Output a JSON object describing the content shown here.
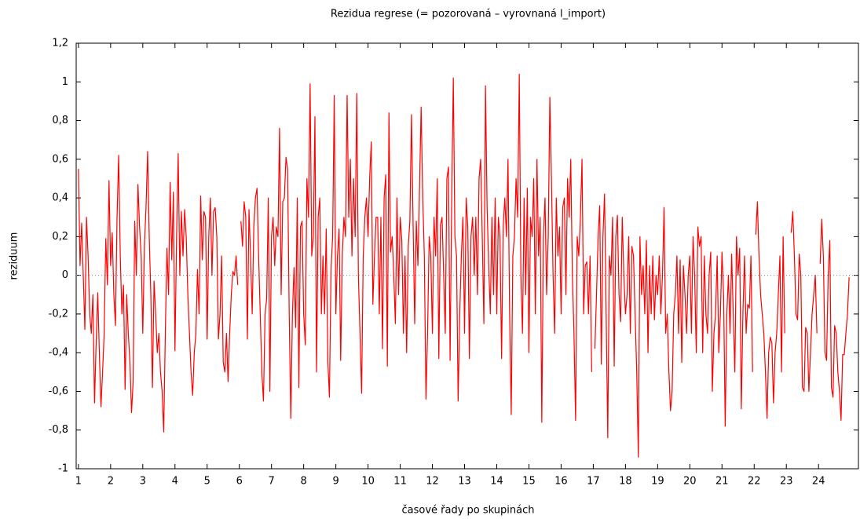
{
  "chart_data": {
    "type": "line",
    "title": "Rezidua regrese (= pozorovaná – vyrovnaná l_import)",
    "x_label": "časové řady po skupinách",
    "y_label": "reziduum",
    "xlim": [
      0.93,
      25.24
    ],
    "ylim": [
      -1,
      1.2
    ],
    "xticks": [
      1,
      2,
      3,
      4,
      5,
      6,
      7,
      8,
      9,
      10,
      11,
      12,
      13,
      14,
      15,
      16,
      17,
      18,
      19,
      20,
      21,
      22,
      23,
      24
    ],
    "yticks": [
      -1,
      {
        "value": -0.8,
        "label": "-0,8"
      },
      {
        "value": -0.6,
        "label": "-0,6"
      },
      {
        "value": -0.4,
        "label": "-0,4"
      },
      {
        "value": -0.2,
        "label": "-0,2"
      },
      0,
      {
        "value": 0.2,
        "label": "0,2"
      },
      {
        "value": 0.4,
        "label": "0,4"
      },
      {
        "value": 0.6,
        "label": "0,6"
      },
      {
        "value": 0.8,
        "label": "0,8"
      },
      1,
      {
        "value": 1.2,
        "label": "1,2"
      }
    ],
    "zero_line": true,
    "x": [
      1,
      1.05,
      1.1,
      1.15,
      1.2,
      1.25,
      1.3,
      1.35,
      1.4,
      1.45,
      1.5,
      1.55,
      1.6,
      1.65,
      1.7,
      1.75,
      1.8,
      1.85,
      1.9,
      1.95,
      2,
      2.05,
      2.1,
      2.15,
      2.2,
      2.25,
      2.3,
      2.35,
      2.4,
      2.45,
      2.5,
      2.55,
      2.6,
      2.65,
      2.7,
      2.75,
      2.8,
      2.85,
      2.9,
      2.95,
      3,
      3.05,
      3.1,
      3.15,
      3.2,
      3.25,
      3.3,
      3.35,
      3.4,
      3.45,
      3.5,
      3.55,
      3.6,
      3.65,
      3.7,
      3.75,
      3.8,
      3.85,
      3.9,
      3.95,
      4,
      4.05,
      4.1,
      4.15,
      4.2,
      4.25,
      4.3,
      4.35,
      4.4,
      4.45,
      4.5,
      4.55,
      4.6,
      4.65,
      4.7,
      4.75,
      4.8,
      4.85,
      4.9,
      4.95,
      5,
      5.05,
      5.1,
      5.15,
      5.2,
      5.25,
      5.3,
      5.35,
      5.4,
      5.45,
      5.5,
      5.55,
      5.6,
      5.65,
      5.7,
      5.75,
      5.8,
      5.85,
      5.9,
      5.95,
      6,
      6.05,
      6.1,
      6.15,
      6.2,
      6.25,
      6.3,
      6.35,
      6.4,
      6.45,
      6.5,
      6.55,
      6.6,
      6.65,
      6.7,
      6.75,
      6.8,
      6.85,
      6.9,
      6.95,
      7,
      7.05,
      7.1,
      7.15,
      7.2,
      7.25,
      7.3,
      7.35,
      7.4,
      7.45,
      7.5,
      7.55,
      7.6,
      7.65,
      7.7,
      7.75,
      7.8,
      7.85,
      7.9,
      7.95,
      8,
      8.05,
      8.1,
      8.15,
      8.2,
      8.25,
      8.3,
      8.35,
      8.4,
      8.45,
      8.5,
      8.55,
      8.6,
      8.65,
      8.7,
      8.75,
      8.8,
      8.85,
      8.9,
      8.95,
      9,
      9.05,
      9.1,
      9.15,
      9.2,
      9.25,
      9.3,
      9.35,
      9.4,
      9.45,
      9.5,
      9.55,
      9.6,
      9.65,
      9.7,
      9.75,
      9.8,
      9.85,
      9.9,
      9.95,
      10,
      10.05,
      10.1,
      10.15,
      10.2,
      10.25,
      10.3,
      10.35,
      10.4,
      10.45,
      10.5,
      10.55,
      10.6,
      10.65,
      10.7,
      10.75,
      10.8,
      10.85,
      10.9,
      10.95,
      11,
      11.05,
      11.1,
      11.15,
      11.2,
      11.25,
      11.3,
      11.35,
      11.4,
      11.45,
      11.5,
      11.55,
      11.6,
      11.65,
      11.7,
      11.75,
      11.8,
      11.85,
      11.9,
      11.95,
      12,
      12.05,
      12.1,
      12.15,
      12.2,
      12.25,
      12.3,
      12.35,
      12.4,
      12.45,
      12.5,
      12.55,
      12.6,
      12.65,
      12.7,
      12.75,
      12.8,
      12.85,
      12.9,
      12.95,
      13,
      13.05,
      13.1,
      13.15,
      13.2,
      13.25,
      13.3,
      13.35,
      13.4,
      13.45,
      13.5,
      13.55,
      13.6,
      13.65,
      13.7,
      13.75,
      13.8,
      13.85,
      13.9,
      13.95,
      14,
      14.05,
      14.1,
      14.15,
      14.2,
      14.25,
      14.3,
      14.35,
      14.4,
      14.45,
      14.5,
      14.55,
      14.6,
      14.65,
      14.7,
      14.75,
      14.8,
      14.85,
      14.9,
      14.95,
      15,
      15.05,
      15.1,
      15.15,
      15.2,
      15.25,
      15.3,
      15.35,
      15.4,
      15.45,
      15.5,
      15.55,
      15.6,
      15.65,
      15.7,
      15.75,
      15.8,
      15.85,
      15.9,
      15.95,
      16,
      16.05,
      16.1,
      16.15,
      16.2,
      16.25,
      16.3,
      16.35,
      16.4,
      16.45,
      16.5,
      16.55,
      16.6,
      16.65,
      16.7,
      16.75,
      16.8,
      16.85,
      16.9,
      16.95,
      17,
      17.05,
      17.1,
      17.15,
      17.2,
      17.25,
      17.3,
      17.35,
      17.4,
      17.45,
      17.5,
      17.55,
      17.6,
      17.65,
      17.7,
      17.75,
      17.8,
      17.85,
      17.9,
      17.95,
      18,
      18.05,
      18.1,
      18.15,
      18.2,
      18.25,
      18.3,
      18.35,
      18.4,
      18.45,
      18.5,
      18.55,
      18.6,
      18.65,
      18.7,
      18.75,
      18.8,
      18.85,
      18.9,
      18.95,
      19,
      19.05,
      19.1,
      19.15,
      19.2,
      19.25,
      19.3,
      19.35,
      19.4,
      19.45,
      19.5,
      19.55,
      19.6,
      19.65,
      19.7,
      19.75,
      19.8,
      19.85,
      19.9,
      19.95,
      20,
      20.05,
      20.1,
      20.15,
      20.2,
      20.25,
      20.3,
      20.35,
      20.4,
      20.45,
      20.5,
      20.55,
      20.6,
      20.65,
      20.7,
      20.75,
      20.8,
      20.85,
      20.9,
      20.95,
      21,
      21.05,
      21.1,
      21.15,
      21.2,
      21.25,
      21.3,
      21.35,
      21.4,
      21.45,
      21.5,
      21.55,
      21.6,
      21.65,
      21.7,
      21.75,
      21.8,
      21.85,
      21.9,
      21.95,
      22,
      22.05,
      22.1,
      22.15,
      22.2,
      22.25,
      22.3,
      22.35,
      22.4,
      22.45,
      22.5,
      22.55,
      22.6,
      22.65,
      22.7,
      22.75,
      22.8,
      22.85,
      22.9,
      22.95,
      23,
      23.05,
      23.1,
      23.15,
      23.2,
      23.25,
      23.3,
      23.35,
      23.4,
      23.45,
      23.5,
      23.55,
      23.6,
      23.65,
      23.7,
      23.75,
      23.8,
      23.85,
      23.9,
      23.95,
      24,
      24.05,
      24.1,
      24.15,
      24.2,
      24.25,
      24.3,
      24.35,
      24.4,
      24.45,
      24.5,
      24.55,
      24.6,
      24.65,
      24.7,
      24.75,
      24.8,
      24.85,
      24.9,
      24.95
    ],
    "series": [
      {
        "name": "reziduum",
        "color": "#ff0000",
        "values": [
          0.55,
          0.05,
          0.27,
          0.0,
          -0.28,
          0.3,
          0.1,
          -0.2,
          -0.3,
          -0.1,
          -0.66,
          -0.35,
          -0.09,
          -0.4,
          -0.68,
          -0.5,
          -0.3,
          0.19,
          -0.05,
          0.49,
          0.05,
          0.22,
          -0.1,
          -0.26,
          0.3,
          0.62,
          0.1,
          -0.2,
          -0.05,
          -0.59,
          -0.1,
          -0.3,
          -0.45,
          -0.71,
          -0.55,
          0.28,
          0.0,
          0.47,
          0.25,
          0.1,
          -0.3,
          0.15,
          0.35,
          0.64,
          0.2,
          -0.1,
          -0.58,
          -0.03,
          -0.2,
          -0.4,
          -0.3,
          -0.5,
          -0.6,
          -0.81,
          -0.3,
          0.14,
          -0.1,
          0.48,
          0.08,
          0.43,
          -0.39,
          0.2,
          0.63,
          0.0,
          0.33,
          0.1,
          0.34,
          0.2,
          -0.1,
          -0.3,
          -0.5,
          -0.62,
          -0.4,
          -0.3,
          0.03,
          -0.2,
          0.41,
          0.08,
          0.33,
          0.3,
          -0.33,
          0.2,
          0.4,
          0.0,
          0.33,
          0.35,
          0.2,
          -0.33,
          -0.2,
          0.1,
          -0.45,
          -0.5,
          -0.3,
          -0.55,
          -0.3,
          -0.1,
          0.02,
          0.0,
          0.1,
          -0.05,
          null,
          0.28,
          0.15,
          0.38,
          0.3,
          -0.33,
          0.34,
          0.1,
          -0.2,
          0.25,
          0.4,
          0.45,
          0.1,
          -0.2,
          -0.5,
          -0.65,
          -0.2,
          -0.12,
          0.4,
          -0.6,
          0.2,
          0.3,
          0.05,
          0.25,
          0.2,
          0.76,
          -0.1,
          0.38,
          0.4,
          0.61,
          0.55,
          -0.2,
          -0.74,
          -0.2,
          0.04,
          -0.27,
          0.4,
          -0.58,
          0.25,
          0.28,
          -0.2,
          -0.36,
          0.5,
          0.3,
          0.99,
          0.1,
          0.2,
          0.82,
          -0.5,
          0.3,
          0.4,
          -0.2,
          0.1,
          -0.2,
          0.24,
          -0.44,
          -0.63,
          0.03,
          0.2,
          0.93,
          -0.2,
          0.1,
          0.24,
          -0.44,
          0.1,
          0.3,
          0.2,
          0.93,
          0.3,
          0.6,
          0.1,
          0.5,
          0.2,
          0.94,
          0.0,
          -0.3,
          -0.61,
          0.1,
          0.3,
          0.4,
          0.2,
          0.5,
          0.69,
          -0.15,
          0.1,
          0.3,
          0.3,
          -0.2,
          0.3,
          -0.38,
          0.4,
          0.52,
          -0.47,
          0.84,
          0.12,
          0.2,
          0.0,
          -0.25,
          0.4,
          -0.1,
          0.3,
          0.18,
          -0.3,
          0.1,
          -0.4,
          0.15,
          0.28,
          0.83,
          0.27,
          -0.25,
          0.28,
          0.05,
          0.45,
          0.87,
          0.4,
          0.1,
          -0.64,
          -0.3,
          0.2,
          0.1,
          -0.3,
          0.3,
          0.1,
          0.5,
          -0.43,
          0.26,
          0.3,
          0.0,
          -0.3,
          0.5,
          0.56,
          -0.44,
          0.4,
          1.02,
          0.2,
          0.1,
          -0.65,
          -0.2,
          0.1,
          0.3,
          -0.3,
          0.4,
          0.25,
          -0.43,
          0.2,
          0.3,
          0.0,
          0.3,
          -0.1,
          0.5,
          0.6,
          0.2,
          -0.25,
          0.98,
          0.35,
          0.05,
          -0.2,
          0.3,
          -0.1,
          0.4,
          -0.2,
          0.3,
          0.2,
          -0.43,
          0.25,
          0.4,
          0.2,
          0.6,
          -0.2,
          -0.72,
          0.1,
          0.2,
          0.5,
          0.3,
          1.04,
          0.0,
          -0.3,
          0.4,
          -0.1,
          0.45,
          -0.4,
          0.3,
          0.2,
          0.5,
          -0.2,
          0.6,
          0.1,
          0.3,
          -0.76,
          0.2,
          0.4,
          -0.1,
          0.2,
          0.92,
          0.5,
          0.0,
          -0.3,
          0.4,
          0.1,
          0.25,
          -0.2,
          0.35,
          0.4,
          -0.1,
          0.5,
          0.3,
          0.6,
          0.0,
          -0.3,
          -0.75,
          0.2,
          0.1,
          0.3,
          0.6,
          -0.2,
          0.05,
          0.07,
          -0.2,
          0.1,
          -0.5,
          null,
          -0.38,
          -0.1,
          0.2,
          0.36,
          -0.46,
          0.2,
          0.42,
          -0.2,
          -0.84,
          0.1,
          0.0,
          0.3,
          -0.47,
          0.2,
          0.31,
          -0.1,
          -0.24,
          0.3,
          0.0,
          -0.2,
          -0.1,
          0.2,
          -0.3,
          0.15,
          0.1,
          -0.2,
          -0.5,
          -0.94,
          0.2,
          -0.1,
          0.05,
          -0.2,
          0.18,
          -0.4,
          0.05,
          -0.2,
          0.1,
          -0.23,
          0.0,
          -0.1,
          0.1,
          -0.2,
          0.0,
          0.35,
          -0.3,
          -0.2,
          -0.5,
          -0.7,
          -0.6,
          -0.2,
          -0.1,
          0.1,
          -0.3,
          0.08,
          -0.45,
          0.05,
          -0.1,
          -0.3,
          0.0,
          0.1,
          -0.3,
          0.2,
          0.0,
          -0.4,
          0.25,
          0.15,
          0.2,
          -0.4,
          0.1,
          -0.2,
          -0.3,
          0.0,
          0.12,
          -0.6,
          -0.3,
          -0.2,
          0.1,
          -0.4,
          -0.2,
          0.12,
          -0.1,
          -0.78,
          -0.2,
          0.0,
          -0.3,
          0.11,
          -0.2,
          -0.5,
          0.2,
          0.0,
          0.14,
          -0.69,
          -0.2,
          0.1,
          -0.3,
          -0.15,
          -0.17,
          0.1,
          -0.5,
          null,
          0.21,
          0.38,
          0.1,
          -0.1,
          -0.2,
          -0.3,
          -0.5,
          -0.74,
          -0.4,
          -0.32,
          -0.35,
          -0.66,
          -0.4,
          -0.3,
          -0.1,
          0.1,
          -0.5,
          0.2,
          -0.3,
          null,
          null,
          null,
          0.22,
          0.33,
          0.1,
          -0.2,
          -0.23,
          0.11,
          0.0,
          -0.58,
          -0.6,
          -0.27,
          -0.3,
          -0.6,
          -0.4,
          -0.2,
          -0.1,
          0.0,
          -0.3,
          null,
          0.06,
          0.29,
          0.1,
          -0.4,
          -0.44,
          0.0,
          0.18,
          -0.58,
          -0.63,
          -0.26,
          -0.3,
          -0.5,
          -0.6,
          -0.75,
          -0.41,
          -0.41,
          -0.3,
          -0.2,
          -0.01
        ]
      }
    ]
  }
}
